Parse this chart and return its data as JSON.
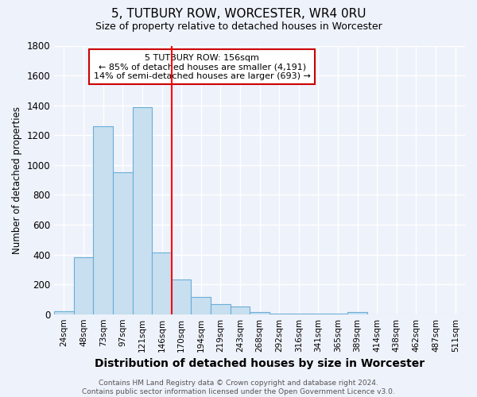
{
  "title": "5, TUTBURY ROW, WORCESTER, WR4 0RU",
  "subtitle": "Size of property relative to detached houses in Worcester",
  "xlabel": "Distribution of detached houses by size in Worcester",
  "ylabel": "Number of detached properties",
  "categories": [
    "24sqm",
    "48sqm",
    "73sqm",
    "97sqm",
    "121sqm",
    "146sqm",
    "170sqm",
    "194sqm",
    "219sqm",
    "243sqm",
    "268sqm",
    "292sqm",
    "316sqm",
    "341sqm",
    "365sqm",
    "389sqm",
    "414sqm",
    "438sqm",
    "462sqm",
    "487sqm",
    "511sqm"
  ],
  "values": [
    20,
    380,
    1260,
    950,
    1390,
    415,
    235,
    115,
    70,
    50,
    15,
    3,
    1,
    5,
    1,
    12,
    0,
    0,
    0,
    0,
    0
  ],
  "bar_color": "#c8dff0",
  "bar_edge_color": "#6aaed6",
  "ylim": [
    0,
    1800
  ],
  "yticks": [
    0,
    200,
    400,
    600,
    800,
    1000,
    1200,
    1400,
    1600,
    1800
  ],
  "property_line_x": 5.5,
  "property_line_color": "#ff0000",
  "annotation_text": "5 TUTBURY ROW: 156sqm\n← 85% of detached houses are smaller (4,191)\n14% of semi-detached houses are larger (693) →",
  "annotation_box_color": "#ffffff",
  "annotation_box_edge_color": "#cc0000",
  "footer": "Contains HM Land Registry data © Crown copyright and database right 2024.\nContains public sector information licensed under the Open Government Licence v3.0.",
  "background_color": "#eef2fb",
  "grid_color": "#ffffff",
  "title_fontsize": 11,
  "subtitle_fontsize": 9,
  "xlabel_fontsize": 10,
  "ylabel_fontsize": 8.5,
  "tick_fontsize": 8.5,
  "xtick_fontsize": 7.5,
  "annotation_fontsize": 8,
  "footer_fontsize": 6.5
}
